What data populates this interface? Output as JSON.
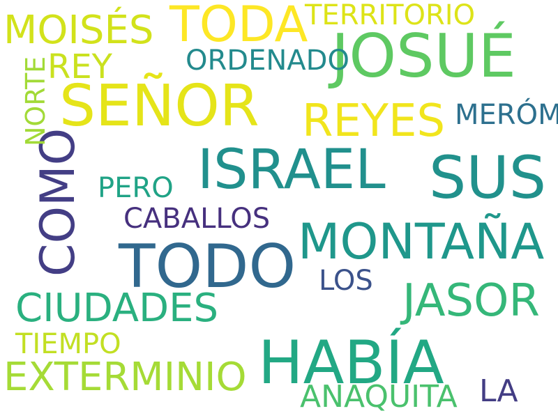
{
  "words": [
    {
      "id": "senor",
      "text": "SEÑOR",
      "color": "#e5e419"
    },
    {
      "id": "josue",
      "text": "JOSUÉ",
      "color": "#5ec962"
    },
    {
      "id": "toda",
      "text": "TODA",
      "color": "#fde725"
    },
    {
      "id": "israel",
      "text": "ISRAEL",
      "color": "#21908d"
    },
    {
      "id": "sus",
      "text": "SUS",
      "color": "#21918c"
    },
    {
      "id": "todo",
      "text": "TODO",
      "color": "#31688e"
    },
    {
      "id": "habia",
      "text": "HABÍA",
      "color": "#22a884"
    },
    {
      "id": "montana",
      "text": "MONTAÑA",
      "color": "#1f978b"
    },
    {
      "id": "moises",
      "text": "MOISÉS",
      "color": "#d2e21b"
    },
    {
      "id": "como",
      "text": "COMO",
      "color": "#433e85"
    },
    {
      "id": "reyes",
      "text": "REYES",
      "color": "#f1e51d"
    },
    {
      "id": "ciudades",
      "text": "CIUDADES",
      "color": "#2ab07f"
    },
    {
      "id": "jasor",
      "text": "JASOR",
      "color": "#35b779"
    },
    {
      "id": "exterminio",
      "text": "EXTERMINIO",
      "color": "#a5db36"
    },
    {
      "id": "territorio",
      "text": "TERRITORIO",
      "color": "#dde318"
    },
    {
      "id": "ordenado",
      "text": "ORDENADO",
      "color": "#238a8d"
    },
    {
      "id": "rey",
      "text": "REY",
      "color": "#cae11f"
    },
    {
      "id": "merom",
      "text": "MERÓM",
      "color": "#2d708e"
    },
    {
      "id": "norte",
      "text": "NORTE",
      "color": "#a2da37"
    },
    {
      "id": "pero",
      "text": "PERO",
      "color": "#20a386"
    },
    {
      "id": "caballos",
      "text": "CABALLOS",
      "color": "#46307e"
    },
    {
      "id": "los",
      "text": "LOS",
      "color": "#3b528b"
    },
    {
      "id": "tiempo",
      "text": "TIEMPO",
      "color": "#c2df23"
    },
    {
      "id": "anaquita",
      "text": "ANAQUITA",
      "color": "#4ac16d"
    },
    {
      "id": "la",
      "text": "LA",
      "color": "#433d84"
    }
  ]
}
